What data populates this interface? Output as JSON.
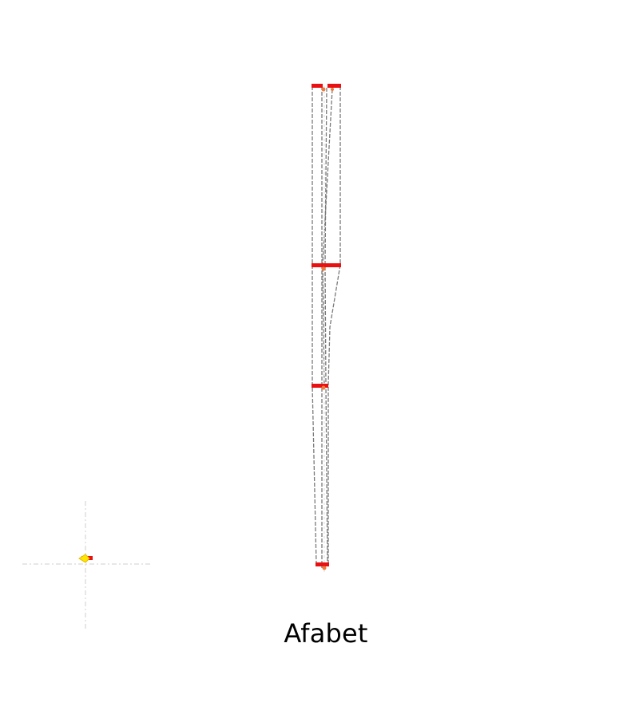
{
  "caption": "Afabet",
  "colors": {
    "stroke": "#7a7a7a",
    "bar": "#e81010",
    "node": "#f07a3a",
    "marker": "#ffe600",
    "crosshair": "#cfcfcf"
  },
  "icons": {
    "marker": "yellow-marker-icon",
    "crosshair": "crosshair-icon"
  }
}
